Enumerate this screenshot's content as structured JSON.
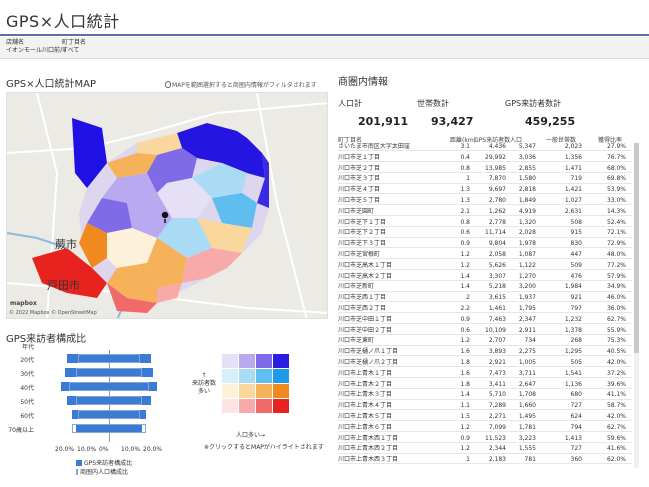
{
  "app": {
    "title": "GPS×人口統計"
  },
  "filters": [
    {
      "label": "店舗名",
      "value": "イオンモール川口前川"
    },
    {
      "label": "町丁目名",
      "value": "すべて"
    }
  ],
  "map_section": {
    "title": "GPS×人口統計MAP",
    "hint": "MAPを範囲選択すると商圏内情報がフィルタされます",
    "credit": "© 2022 Mapbox © OpenStreetMap",
    "logo": "mapbox",
    "places": [
      "蕨市",
      "戸田市"
    ]
  },
  "summary": {
    "title": "商圏内情報",
    "kpis": [
      {
        "label": "人口計",
        "value": "201,911"
      },
      {
        "label": "世帯数計",
        "value": "93,427"
      },
      {
        "label": "GPS来訪者数計",
        "value": "459,255"
      }
    ]
  },
  "table": {
    "columns": [
      "町丁目名",
      "距離(km)",
      "GPS来訪者数",
      "人口",
      "一般世帯数",
      "獲得比率"
    ],
    "rows": [
      [
        "さいたま市南区大字太田窪",
        "3.1",
        "4,436",
        "5,347",
        "2,023",
        "27.9%"
      ],
      [
        "川口市芝１丁目",
        "0.4",
        "29,992",
        "3,036",
        "1,356",
        "76.7%"
      ],
      [
        "川口市芝２丁目",
        "0.8",
        "13,985",
        "2,855",
        "1,471",
        "68.0%"
      ],
      [
        "川口市芝３丁目",
        "1",
        "7,870",
        "1,580",
        "719",
        "69.8%"
      ],
      [
        "川口市芝４丁目",
        "1.3",
        "9,697",
        "2,818",
        "1,421",
        "53.9%"
      ],
      [
        "川口市芝５丁目",
        "1.3",
        "2,780",
        "1,849",
        "1,027",
        "33.0%"
      ],
      [
        "川口市芝園町",
        "2.1",
        "1,262",
        "4,919",
        "2,631",
        "14.3%"
      ],
      [
        "川口市芝下１丁目",
        "0.8",
        "2,778",
        "1,320",
        "508",
        "52.4%"
      ],
      [
        "川口市芝下２丁目",
        "0.6",
        "11,714",
        "2,028",
        "915",
        "72.1%"
      ],
      [
        "川口市芝下３丁目",
        "0.9",
        "9,804",
        "1,978",
        "830",
        "72.9%"
      ],
      [
        "川口市芝宮根町",
        "1.2",
        "2,058",
        "1,087",
        "447",
        "48.0%"
      ],
      [
        "川口市芝高木１丁目",
        "1.2",
        "5,626",
        "1,122",
        "509",
        "77.2%"
      ],
      [
        "川口市芝高木２丁目",
        "1.4",
        "3,307",
        "1,270",
        "476",
        "57.9%"
      ],
      [
        "川口市芝新町",
        "1.4",
        "5,218",
        "3,200",
        "1,984",
        "34.9%"
      ],
      [
        "川口市芝西１丁目",
        "2",
        "3,615",
        "1,937",
        "921",
        "46.0%"
      ],
      [
        "川口市芝西２丁目",
        "2.2",
        "1,461",
        "1,795",
        "797",
        "36.0%"
      ],
      [
        "川口市芝中田１丁目",
        "0.9",
        "7,463",
        "2,347",
        "1,232",
        "62.7%"
      ],
      [
        "川口市芝中田２丁目",
        "0.6",
        "10,109",
        "2,911",
        "1,378",
        "55.9%"
      ],
      [
        "川口市芝東町",
        "1.2",
        "2,707",
        "734",
        "268",
        "75.3%"
      ],
      [
        "川口市芝樋ノ爪１丁目",
        "1.6",
        "3,893",
        "2,275",
        "1,295",
        "40.5%"
      ],
      [
        "川口市芝樋ノ爪２丁目",
        "1.8",
        "2,921",
        "1,005",
        "505",
        "42.0%"
      ],
      [
        "川口市上青木１丁目",
        "1.6",
        "7,473",
        "3,711",
        "1,541",
        "37.2%"
      ],
      [
        "川口市上青木２丁目",
        "1.8",
        "3,411",
        "2,647",
        "1,136",
        "39.6%"
      ],
      [
        "川口市上青木３丁目",
        "1.4",
        "5,710",
        "1,708",
        "680",
        "41.1%"
      ],
      [
        "川口市上青木４丁目",
        "1.1",
        "7,289",
        "1,660",
        "727",
        "58.7%"
      ],
      [
        "川口市上青木５丁目",
        "1.5",
        "2,271",
        "1,495",
        "624",
        "42.0%"
      ],
      [
        "川口市上青木６丁目",
        "1.2",
        "7,099",
        "1,781",
        "794",
        "62.7%"
      ],
      [
        "川口市上青木西１丁目",
        "0.9",
        "11,523",
        "3,223",
        "1,413",
        "59.6%"
      ],
      [
        "川口市上青木西２丁目",
        "1.2",
        "2,344",
        "1,555",
        "727",
        "41.6%"
      ],
      [
        "川口市上青木西３丁目",
        "1",
        "2,183",
        "781",
        "360",
        "62.0%"
      ]
    ]
  },
  "pyramid": {
    "title": "GPS来訪者構成比",
    "age_header": "年代",
    "ages": [
      "20代",
      "30代",
      "40代",
      "50代",
      "60代",
      "70歳以上"
    ],
    "gps_share": [
      19,
      20,
      22,
      19,
      17,
      15
    ],
    "area_share": [
      14,
      15,
      18,
      15,
      14,
      17
    ],
    "ticks": [
      "20.0%",
      "10.0%",
      "0%",
      "10.0%",
      "20.0%"
    ],
    "legend": [
      "GPS来訪者構成比",
      "商圏内人口構成比"
    ],
    "bar_color": "#3a7bd5"
  },
  "bivariate": {
    "y_label": "↑\n来訪者数\n多い",
    "x_label": "人口多い→",
    "note": "※クリックするとMAPがハイライトされます",
    "colors": [
      [
        "#e6e0f7",
        "#b9a9f0",
        "#7f6ae8",
        "#2a1fe0"
      ],
      [
        "#d8effa",
        "#a9dcf4",
        "#5fbdf0",
        "#1e9be8"
      ],
      [
        "#fdf1d9",
        "#fad79c",
        "#f6b25a",
        "#f08a1e"
      ],
      [
        "#fde3e3",
        "#f8aaaa",
        "#f06a6a",
        "#e8221e"
      ]
    ]
  }
}
